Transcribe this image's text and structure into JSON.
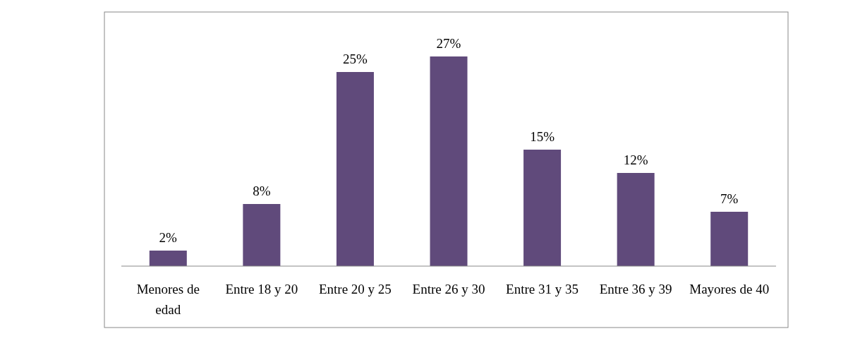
{
  "chart_data": {
    "type": "bar",
    "categories": [
      "Menores de edad",
      "Entre 18 y 20",
      "Entre 20 y 25",
      "Entre 26 y 30",
      "Entre 31 y 35",
      "Entre 36 y 39",
      "Mayores de 40"
    ],
    "values": [
      2,
      8,
      25,
      27,
      15,
      12,
      7
    ],
    "value_labels": [
      "2%",
      "8%",
      "25%",
      "27%",
      "15%",
      "12%",
      "7%"
    ],
    "color": "#604a7b"
  }
}
